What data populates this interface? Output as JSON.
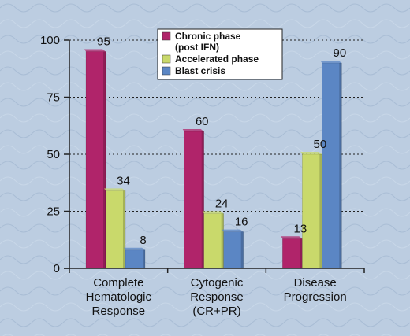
{
  "chart_data": {
    "type": "bar",
    "categories": [
      [
        "Complete",
        "Hematologic",
        "Response"
      ],
      [
        "Cytogenic",
        "Response",
        "(CR+PR)"
      ],
      [
        "Disease",
        "Progression"
      ]
    ],
    "series": [
      {
        "name": "Chronic phase (post IFN)",
        "legend_lines": [
          "Chronic phase",
          "(post IFN)"
        ],
        "color": "#b0246a",
        "values": [
          95,
          60,
          13
        ]
      },
      {
        "name": "Accelerated phase",
        "legend_lines": [
          "Accelerated phase"
        ],
        "color": "#c9d96b",
        "values": [
          34,
          24,
          50
        ]
      },
      {
        "name": "Blast crisis",
        "legend_lines": [
          "Blast crisis"
        ],
        "color": "#5b86c4",
        "values": [
          8,
          16,
          90
        ]
      }
    ],
    "y_ticks": [
      0,
      25,
      50,
      75,
      100
    ],
    "ylim": [
      0,
      100
    ],
    "grid": "horizontal dotted",
    "legend_position": "top-center",
    "title": "",
    "xlabel": "",
    "ylabel": ""
  }
}
